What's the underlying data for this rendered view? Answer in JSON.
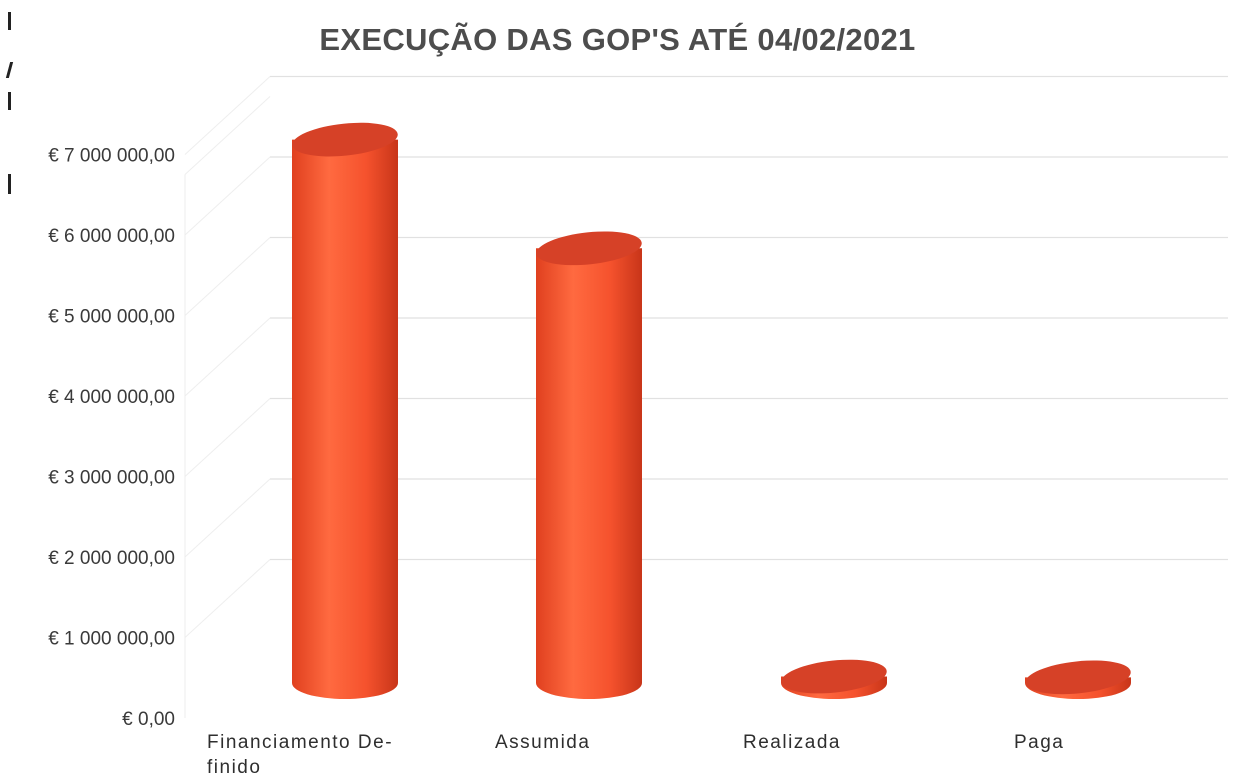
{
  "chart_data": {
    "type": "bar",
    "title": "EXECUÇÃO DAS GOP'S ATÉ 04/02/2021",
    "categories": [
      "Financiamento De-finido",
      "Assumida",
      "Realizada",
      "Paga"
    ],
    "category_lines": [
      [
        "Financiamento De-",
        "finido"
      ],
      [
        "Assumida"
      ],
      [
        "Realizada"
      ],
      [
        "Paga"
      ]
    ],
    "values": [
      6750000,
      5400000,
      80000,
      70000
    ],
    "ylim": [
      0,
      7000000
    ],
    "yticks": [
      0,
      1000000,
      2000000,
      3000000,
      4000000,
      5000000,
      6000000,
      7000000
    ],
    "ytick_labels": [
      "€ 0,00",
      "€ 1 000 000,00",
      "€ 2 000 000,00",
      "€ 3 000 000,00",
      "€ 4 000 000,00",
      "€ 5 000 000,00",
      "€ 6 000 000,00",
      "€ 7 000 000,00"
    ],
    "xlabel": "",
    "ylabel": "",
    "grid": true,
    "legend": "none",
    "bar_shape": "cylinder",
    "colors": {
      "bar_body": "#f2502c",
      "bar_top": "#d64127",
      "bar_highlight": "#ff6a40",
      "grid": "#e1e1e1",
      "title": "#4d4d4d"
    }
  }
}
